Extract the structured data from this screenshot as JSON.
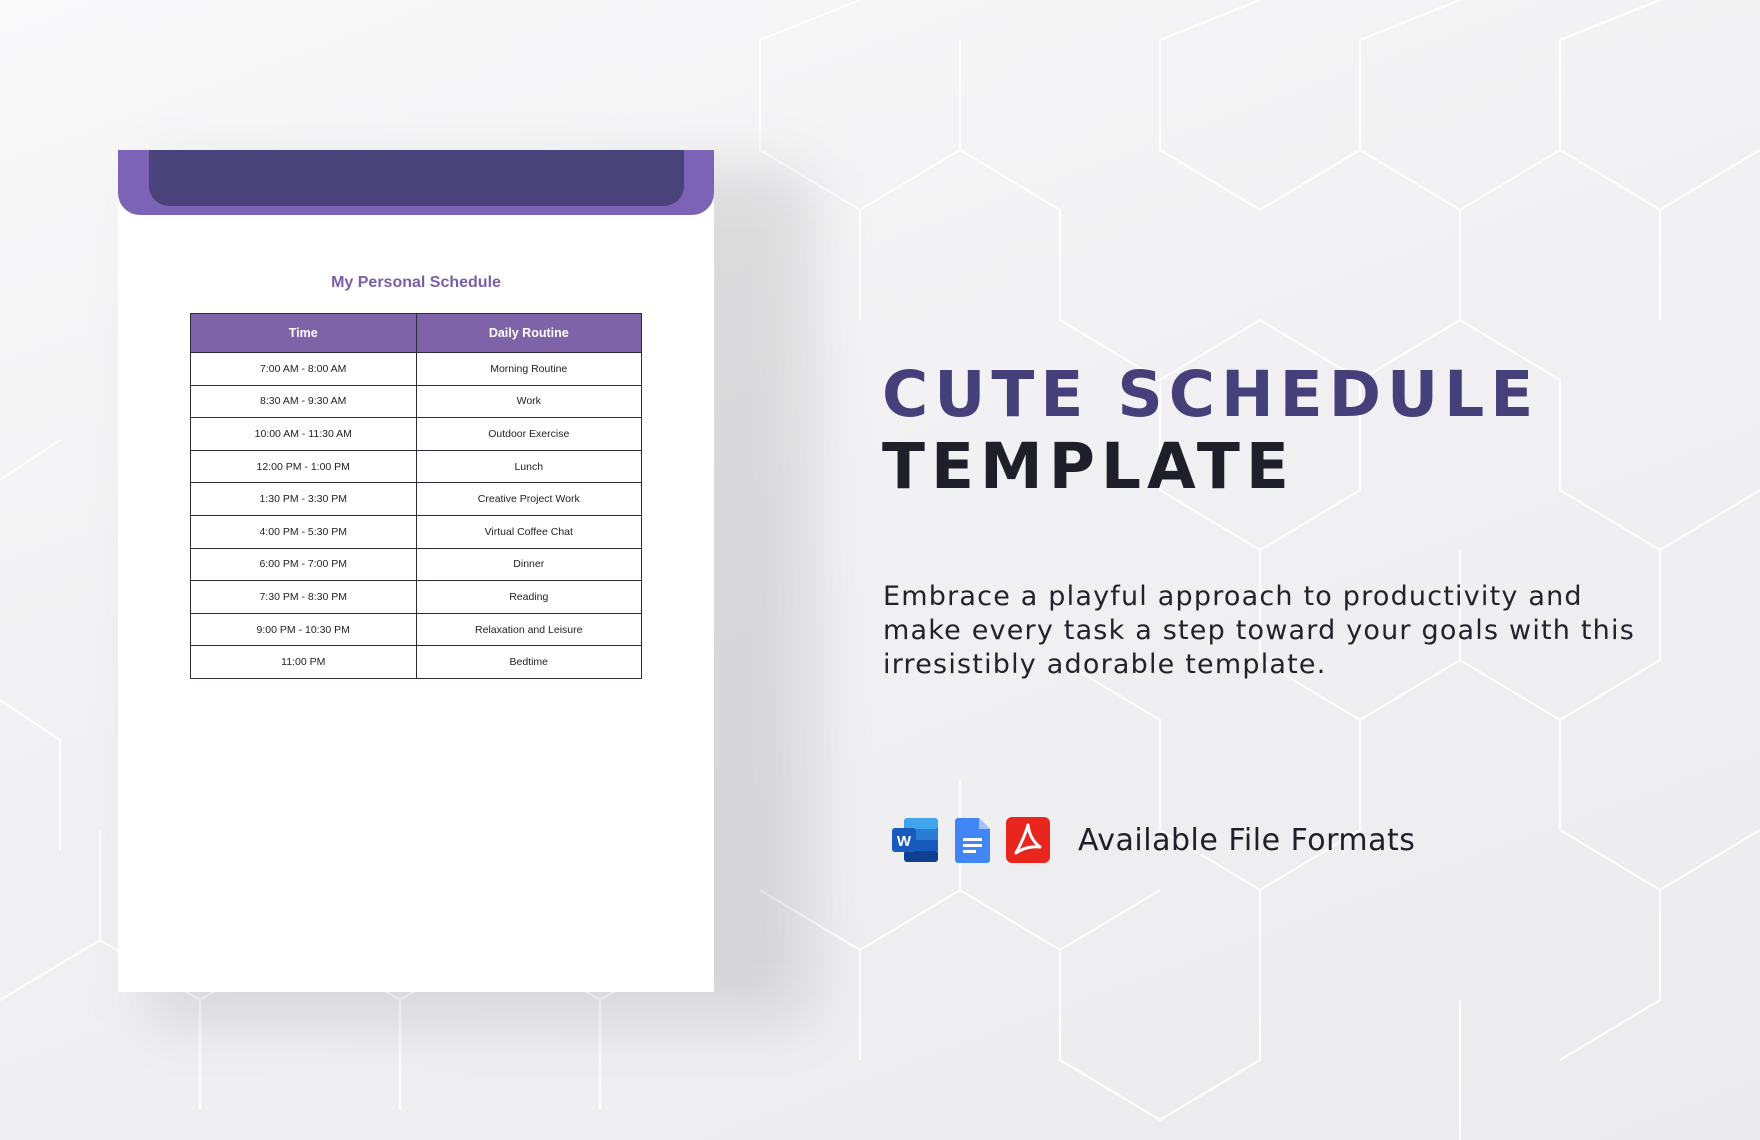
{
  "document": {
    "title": "My Personal Schedule",
    "table": {
      "headers": [
        "Time",
        "Daily Routine"
      ],
      "rows": [
        [
          "7:00 AM - 8:00 AM",
          "Morning Routine"
        ],
        [
          "8:30 AM - 9:30 AM",
          "Work"
        ],
        [
          "10:00 AM - 11:30 AM",
          "Outdoor Exercise"
        ],
        [
          "12:00 PM - 1:00 PM",
          "Lunch"
        ],
        [
          "1:30 PM - 3:30 PM",
          "Creative Project Work"
        ],
        [
          "4:00 PM - 5:30 PM",
          "Virtual Coffee Chat"
        ],
        [
          "6:00 PM - 7:00 PM",
          "Dinner"
        ],
        [
          "7:30 PM - 8:30 PM",
          "Reading"
        ],
        [
          "9:00 PM - 10:30 PM",
          "Relaxation and Leisure"
        ],
        [
          "11:00 PM",
          "Bedtime"
        ]
      ]
    }
  },
  "promo": {
    "title_line_1": "CUTE SCHEDULE",
    "title_line_2": "TEMPLATE",
    "description": "Embrace a playful approach to productivity and make every task a step toward your goals with this irresistibly adorable template.",
    "formats_label": "Available File Formats",
    "format_icons": [
      "word-icon",
      "google-docs-icon",
      "pdf-icon"
    ]
  },
  "colors": {
    "header_purple": "#7d63b8",
    "header_dark": "#4a4379",
    "title_accent": "#45407a",
    "title_dark": "#1f1f2a"
  }
}
